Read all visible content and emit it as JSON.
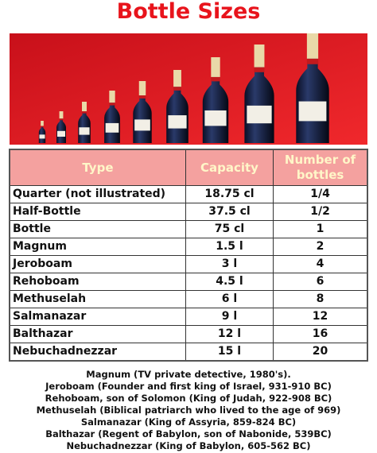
{
  "title": "Bottle Sizes",
  "table": {
    "header": [
      "Type",
      "Capacity",
      "Number of bottles"
    ],
    "rows": [
      [
        "Quarter (not illustrated)",
        "18.75 cl",
        "1/4"
      ],
      [
        "Half-Bottle",
        "37.5 cl",
        "1/2"
      ],
      [
        "Bottle",
        "75 cl",
        "1"
      ],
      [
        "Magnum",
        "1.5 l",
        "2"
      ],
      [
        "Jeroboam",
        "3 l",
        "4"
      ],
      [
        "Rehoboam",
        "4.5 l",
        "6"
      ],
      [
        "Methuselah",
        "6 l",
        "8"
      ],
      [
        "Salmanazar",
        "9 l",
        "12"
      ],
      [
        "Balthazar",
        "12 l",
        "16"
      ],
      [
        "Nebuchadnezzar",
        "15 l",
        "20"
      ]
    ]
  },
  "notes": [
    "Magnum (TV private detective, 1980's).",
    "Jeroboam (Founder and first king of Israel, 931-910 BC)",
    "Rehoboam, son of Solomon (King of Judah, 922-908 BC)",
    "Methuselah (Biblical patriarch who lived to the age of 969)",
    "Salmanazar (King of Assyria, 859-824 BC)",
    "Balthazar (Regent of Babylon, son of Nabonide, 539BC)",
    "Nebuchadnezzar (King of Babylon, 605-562 BC)"
  ]
}
